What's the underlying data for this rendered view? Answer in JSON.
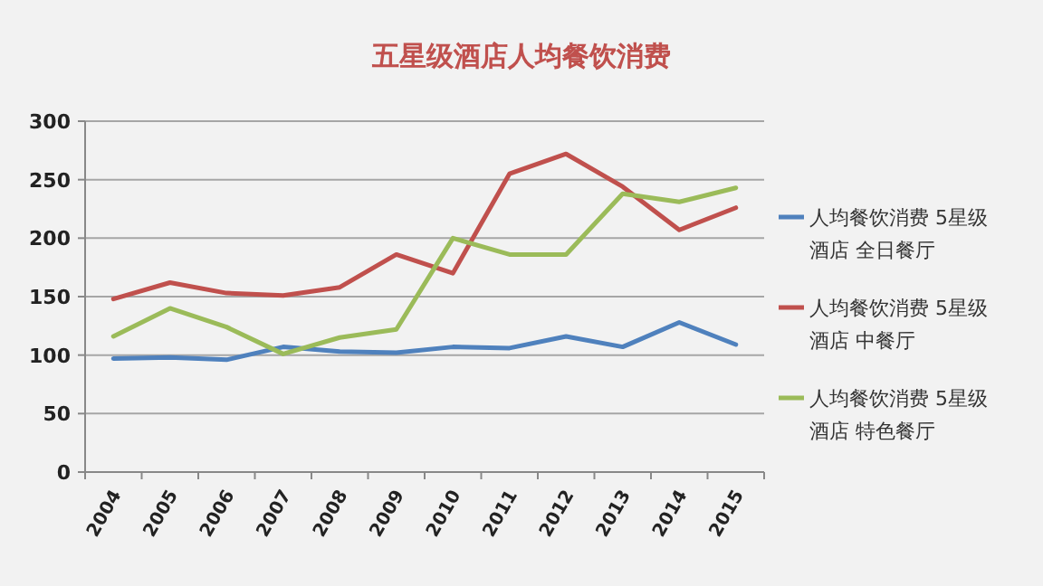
{
  "chart_data": {
    "type": "line",
    "title": "五星级酒店人均餐饮消费",
    "categories": [
      "2004",
      "2005",
      "2006",
      "2007",
      "2008",
      "2009",
      "2010",
      "2011",
      "2012",
      "2013",
      "2014",
      "2015"
    ],
    "series": [
      {
        "name": "人均餐饮消费 5星级酒店 全日餐厅",
        "color": "#4f81bd",
        "values": [
          97,
          98,
          96,
          107,
          103,
          102,
          107,
          106,
          116,
          107,
          128,
          109
        ]
      },
      {
        "name": "人均餐饮消费 5星级酒店 中餐厅",
        "color": "#c0504d",
        "values": [
          148,
          162,
          153,
          151,
          158,
          186,
          170,
          255,
          272,
          244,
          207,
          226
        ]
      },
      {
        "name": "人均餐饮消费 5星级酒店 特色餐厅",
        "color": "#9bbb59",
        "values": [
          116,
          140,
          124,
          101,
          115,
          122,
          200,
          186,
          186,
          238,
          231,
          243
        ]
      }
    ],
    "ylim": [
      0,
      300
    ],
    "yticks": [
      0,
      50,
      100,
      150,
      200,
      250,
      300
    ],
    "grid": "y",
    "legend": "right",
    "marker": "none",
    "line_style": "solid"
  }
}
